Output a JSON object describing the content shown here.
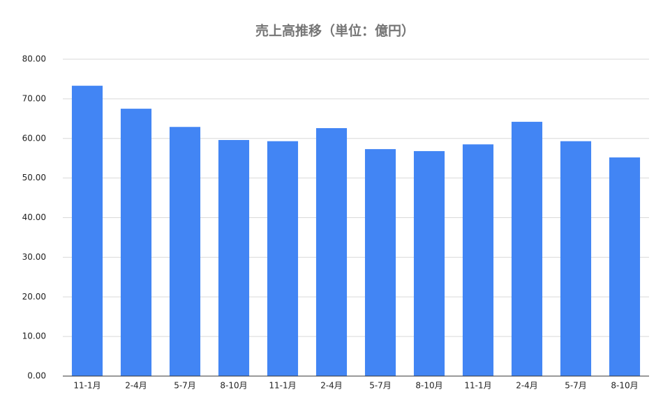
{
  "chart_data": {
    "type": "bar",
    "title": "売上高推移（単位：億円）",
    "categories": [
      "11-1月",
      "2-4月",
      "5-7月",
      "8-10月",
      "11-1月",
      "2-4月",
      "5-7月",
      "8-10月",
      "11-1月",
      "2-4月",
      "5-7月",
      "8-10月"
    ],
    "values": [
      73.3,
      67.5,
      62.9,
      59.6,
      59.3,
      62.6,
      57.3,
      56.8,
      58.5,
      64.2,
      59.3,
      55.2
    ],
    "color": "#4285f4",
    "ylim": [
      0,
      80
    ],
    "yticks": [
      {
        "value": 0,
        "label": "0.00"
      },
      {
        "value": 10,
        "label": "10.00"
      },
      {
        "value": 20,
        "label": "20.00"
      },
      {
        "value": 30,
        "label": "30.00"
      },
      {
        "value": 40,
        "label": "40.00"
      },
      {
        "value": 50,
        "label": "50.00"
      },
      {
        "value": 60,
        "label": "60.00"
      },
      {
        "value": 70,
        "label": "70.00"
      },
      {
        "value": 80,
        "label": "80.00"
      }
    ],
    "grid": true
  }
}
